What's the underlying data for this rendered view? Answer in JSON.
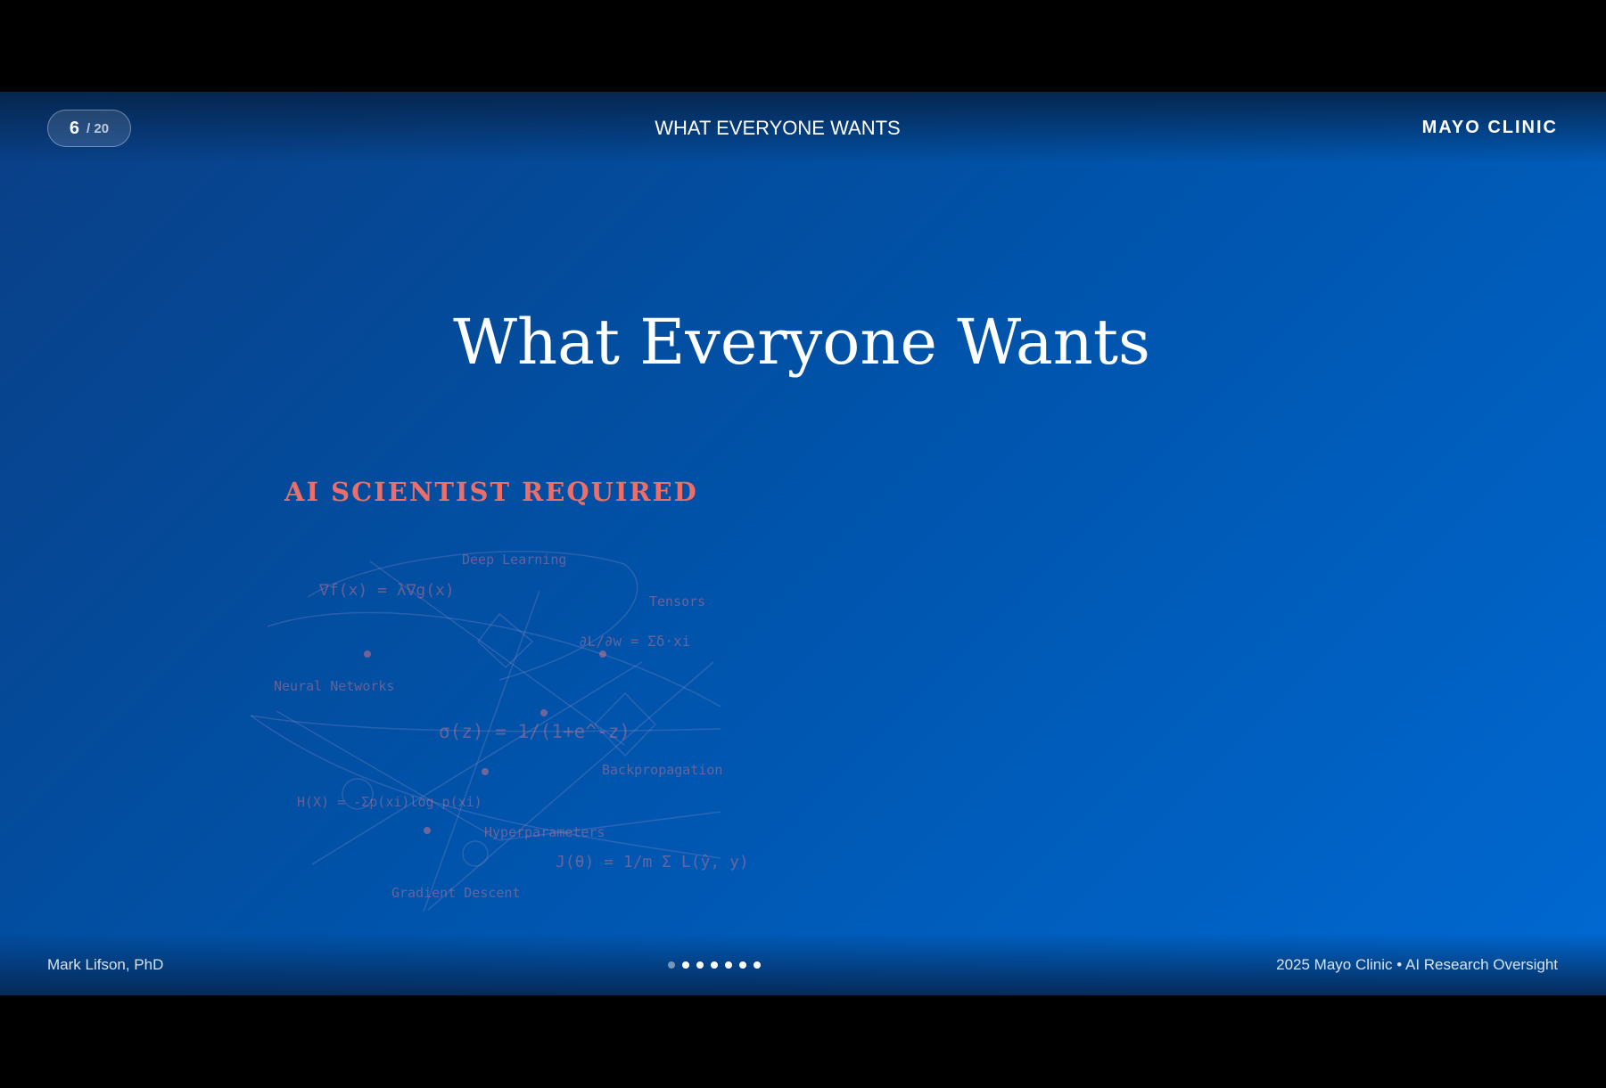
{
  "header": {
    "page_current": "6",
    "page_total": "/ 20",
    "title": "WHAT EVERYONE WANTS",
    "brand": "MAYO CLINIC"
  },
  "slide": {
    "title": "What Everyone Wants",
    "subtitle": "AI SCIENTIST REQUIRED",
    "diagram": {
      "items": [
        "Deep Learning",
        "∇f(x) = λ∇g(x)",
        "Tensors",
        "∂L/∂w = Σδ·xi",
        "Neural Networks",
        "σ(z) = 1/(1+e^-z)",
        "Backpropagation",
        "H(X) = -Σp(xi)log p(xi)",
        "Hyperparameters",
        "J(θ) = 1/m Σ L(ŷ, y)",
        "Gradient Descent"
      ]
    }
  },
  "footer": {
    "author": "Mark Lifson, PhD",
    "copyright": "2025 Mayo Clinic • AI Research Oversight"
  }
}
